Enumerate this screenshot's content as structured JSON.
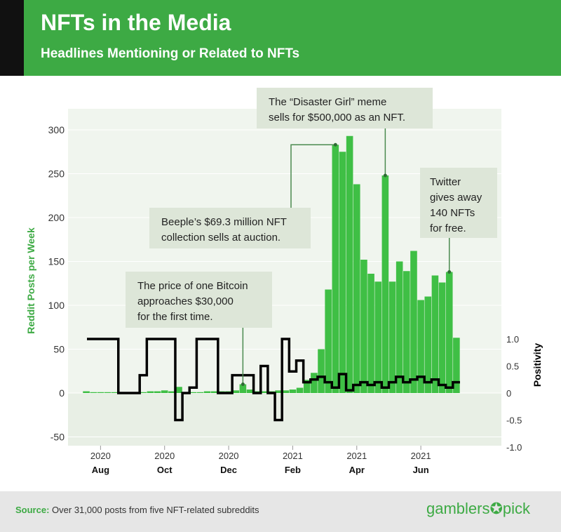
{
  "header": {
    "title": "NFTs in the Media",
    "subtitle": "Headlines Mentioning or Related to NFTs"
  },
  "footer": {
    "source_label": "Source:",
    "source_text": "Over 31,000 posts from five NFT-related subreddits",
    "logo_left": "gamblers",
    "logo_right": "pick"
  },
  "colors": {
    "header_green": "#3daa44",
    "bar_green": "#3fbf45",
    "plot_band": "#f0f5ee",
    "annotation_bg": "#dde6d8",
    "positivity_line": "#000000"
  },
  "chart_data": {
    "type": "bar",
    "ylabel": "Reddit Posts per Week",
    "y2label": "Positivity",
    "ylim": [
      -50,
      300
    ],
    "y2lim": [
      -1.0,
      1.0
    ],
    "yticks": [
      -50,
      0,
      50,
      100,
      150,
      200,
      250,
      300
    ],
    "y2ticks": [
      "-1.0",
      "-0.5",
      "0",
      "0.5",
      "1.0"
    ],
    "xticks": [
      {
        "week": 2,
        "year": "2020",
        "month": "Aug"
      },
      {
        "week": 11,
        "year": "2020",
        "month": "Oct"
      },
      {
        "week": 20,
        "year": "2020",
        "month": "Dec"
      },
      {
        "week": 29,
        "year": "2021",
        "month": "Feb"
      },
      {
        "week": 38,
        "year": "2021",
        "month": "Apr"
      },
      {
        "week": 47,
        "year": "2021",
        "month": "Jun"
      }
    ],
    "posts": [
      2,
      1,
      1,
      1,
      1,
      1,
      1,
      1,
      1,
      2,
      2,
      3,
      2,
      7,
      1,
      1,
      1,
      2,
      2,
      2,
      2,
      3,
      10,
      4,
      2,
      2,
      2,
      3,
      3,
      4,
      6,
      15,
      23,
      50,
      118,
      283,
      275,
      293,
      238,
      152,
      136,
      127,
      248,
      127,
      150,
      139,
      162,
      106,
      110,
      134,
      126,
      138,
      63
    ],
    "positivity": [
      1.0,
      1.0,
      1.0,
      1.0,
      1.0,
      0.0,
      0.0,
      0.0,
      0.33,
      1.0,
      1.0,
      1.0,
      1.0,
      -0.5,
      0.0,
      0.1,
      1.0,
      1.0,
      1.0,
      0.0,
      0.0,
      0.33,
      0.33,
      0.33,
      0.0,
      0.5,
      0.0,
      -0.5,
      1.0,
      0.4,
      0.6,
      0.2,
      0.25,
      0.3,
      0.2,
      0.1,
      0.35,
      0.05,
      0.15,
      0.2,
      0.15,
      0.2,
      0.1,
      0.2,
      0.3,
      0.2,
      0.25,
      0.3,
      0.2,
      0.25,
      0.15,
      0.1,
      0.2
    ]
  },
  "annotations": [
    {
      "lines": [
        "The price of one Bitcoin",
        "approaches $30,000",
        "for the first time."
      ],
      "week": 22,
      "value": 10
    },
    {
      "lines": [
        "Beeple’s $69.3 million NFT",
        "collection sells at auction."
      ],
      "week": 35,
      "value": 283
    },
    {
      "lines": [
        "The “Disaster Girl” meme",
        "sells for $500,000 as an NFT."
      ],
      "week": 42,
      "value": 248
    },
    {
      "lines": [
        "Twitter",
        "gives away",
        "140 NFTs",
        "for free."
      ],
      "week": 51,
      "value": 138
    }
  ]
}
